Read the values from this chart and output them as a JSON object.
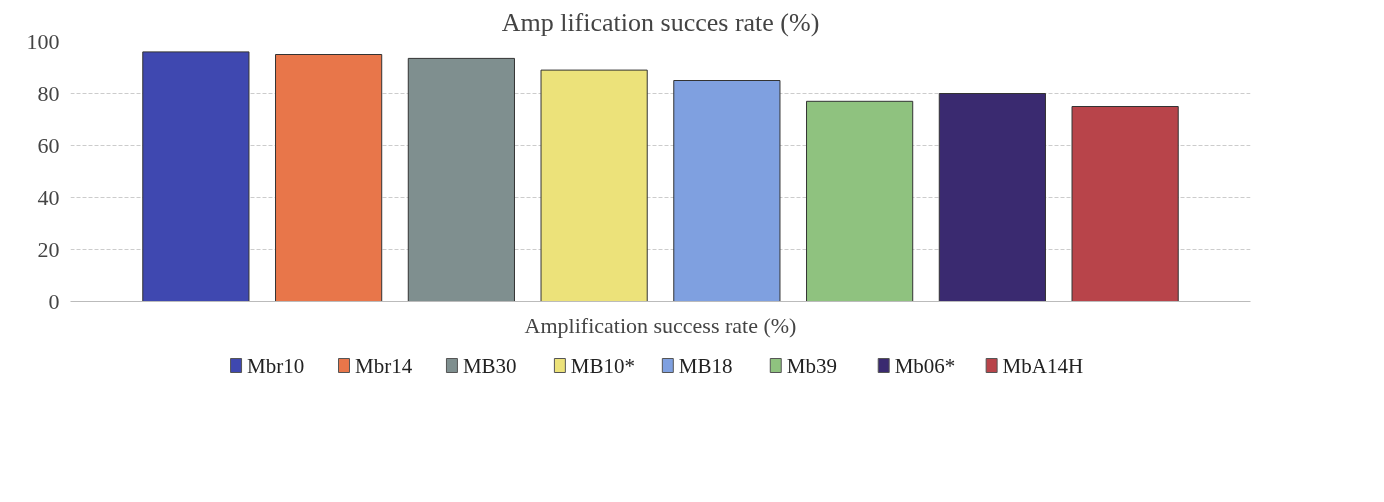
{
  "chart_data": {
    "type": "bar",
    "title": "Amp lification succes rate (%)",
    "xlabel": "Amplification success rate (%)",
    "categories": [
      null
    ],
    "series": [
      {
        "name": "Mbr10",
        "color": "#3f48b0",
        "values": [
          96
        ]
      },
      {
        "name": "Mbr14",
        "color": "#e8764a",
        "values": [
          95
        ]
      },
      {
        "name": "MB30",
        "color": "#7f8f8f",
        "values": [
          93.5
        ]
      },
      {
        "name": "MB10*",
        "color": "#ece27a",
        "values": [
          89
        ]
      },
      {
        "name": "MB18",
        "color": "#7fa0e0",
        "values": [
          85
        ]
      },
      {
        "name": "Mb39",
        "color": "#8fc27f",
        "values": [
          77
        ]
      },
      {
        "name": "Mb06*",
        "color": "#3a2a70",
        "values": [
          80
        ]
      },
      {
        "name": "MbA14H",
        "color": "#b8444a",
        "values": [
          75
        ]
      }
    ],
    "ylim": [
      0,
      100
    ],
    "yticks": [
      0,
      20,
      40,
      60,
      80,
      100
    ],
    "grid": "y",
    "legend": "bottom"
  }
}
